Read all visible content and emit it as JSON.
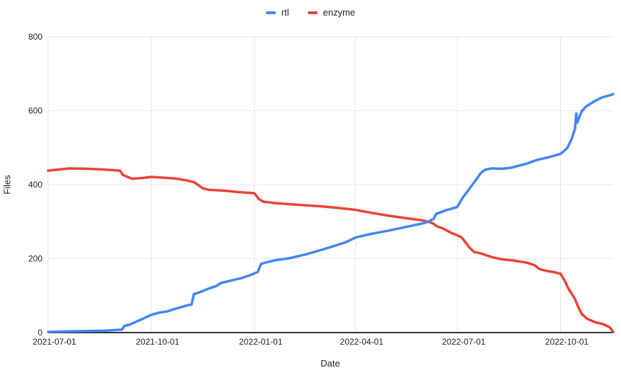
{
  "chart_data": {
    "type": "line",
    "title": "",
    "xlabel": "Date",
    "ylabel": "Files",
    "ylim": [
      0,
      800
    ],
    "x_range": [
      "2021-07-01",
      "2022-11-17"
    ],
    "x_ticks": [
      "2021-07-01",
      "2021-10-01",
      "2022-01-01",
      "2022-04-01",
      "2022-07-01",
      "2022-10-01"
    ],
    "y_ticks": [
      0,
      200,
      400,
      600,
      800
    ],
    "grid": true,
    "legend_position": "top-center",
    "colors": {
      "gridline": "#e6e6e6",
      "axis_baseline": "#333333",
      "text": "#202124",
      "background": "#ffffff"
    },
    "series": [
      {
        "name": "rtl",
        "color": "#4285F4",
        "points": [
          [
            "2021-07-01",
            2
          ],
          [
            "2021-07-15",
            3
          ],
          [
            "2021-08-01",
            4
          ],
          [
            "2021-08-20",
            5
          ],
          [
            "2021-09-01",
            7
          ],
          [
            "2021-09-05",
            8
          ],
          [
            "2021-09-07",
            18
          ],
          [
            "2021-09-12",
            22
          ],
          [
            "2021-09-18",
            30
          ],
          [
            "2021-09-24",
            38
          ],
          [
            "2021-10-01",
            48
          ],
          [
            "2021-10-08",
            54
          ],
          [
            "2021-10-15",
            57
          ],
          [
            "2021-10-22",
            64
          ],
          [
            "2021-11-01",
            73
          ],
          [
            "2021-11-06",
            76
          ],
          [
            "2021-11-08",
            104
          ],
          [
            "2021-11-14",
            110
          ],
          [
            "2021-11-22",
            120
          ],
          [
            "2021-11-28",
            126
          ],
          [
            "2021-12-02",
            134
          ],
          [
            "2021-12-10",
            140
          ],
          [
            "2021-12-20",
            147
          ],
          [
            "2021-12-28",
            155
          ],
          [
            "2022-01-04",
            164
          ],
          [
            "2022-01-07",
            186
          ],
          [
            "2022-01-12",
            190
          ],
          [
            "2022-01-20",
            196
          ],
          [
            "2022-02-01",
            201
          ],
          [
            "2022-02-15",
            211
          ],
          [
            "2022-03-01",
            223
          ],
          [
            "2022-03-15",
            236
          ],
          [
            "2022-03-24",
            245
          ],
          [
            "2022-04-01",
            257
          ],
          [
            "2022-04-08",
            262
          ],
          [
            "2022-04-15",
            267
          ],
          [
            "2022-05-01",
            276
          ],
          [
            "2022-05-15",
            285
          ],
          [
            "2022-06-01",
            296
          ],
          [
            "2022-06-05",
            300
          ],
          [
            "2022-06-10",
            308
          ],
          [
            "2022-06-12",
            321
          ],
          [
            "2022-06-20",
            330
          ],
          [
            "2022-07-01",
            340
          ],
          [
            "2022-07-06",
            366
          ],
          [
            "2022-07-12",
            390
          ],
          [
            "2022-07-18",
            415
          ],
          [
            "2022-07-22",
            432
          ],
          [
            "2022-07-26",
            441
          ],
          [
            "2022-08-01",
            444
          ],
          [
            "2022-08-10",
            443
          ],
          [
            "2022-08-18",
            446
          ],
          [
            "2022-09-01",
            457
          ],
          [
            "2022-09-10",
            467
          ],
          [
            "2022-09-20",
            474
          ],
          [
            "2022-10-01",
            483
          ],
          [
            "2022-10-07",
            499
          ],
          [
            "2022-10-11",
            524
          ],
          [
            "2022-10-14",
            552
          ],
          [
            "2022-10-15",
            593
          ],
          [
            "2022-10-16",
            568
          ],
          [
            "2022-10-18",
            584
          ],
          [
            "2022-10-20",
            599
          ],
          [
            "2022-10-24",
            612
          ],
          [
            "2022-11-01",
            627
          ],
          [
            "2022-11-07",
            636
          ],
          [
            "2022-11-12",
            640
          ],
          [
            "2022-11-17",
            645
          ]
        ]
      },
      {
        "name": "enzyme",
        "color": "#EA4335",
        "points": [
          [
            "2021-07-01",
            438
          ],
          [
            "2021-07-10",
            441
          ],
          [
            "2021-07-20",
            444
          ],
          [
            "2021-08-05",
            443
          ],
          [
            "2021-08-20",
            441
          ],
          [
            "2021-09-03",
            438
          ],
          [
            "2021-09-06",
            426
          ],
          [
            "2021-09-14",
            416
          ],
          [
            "2021-09-22",
            418
          ],
          [
            "2021-10-01",
            421
          ],
          [
            "2021-10-12",
            419
          ],
          [
            "2021-10-22",
            417
          ],
          [
            "2021-11-01",
            412
          ],
          [
            "2021-11-08",
            407
          ],
          [
            "2021-11-12",
            399
          ],
          [
            "2021-11-16",
            390
          ],
          [
            "2021-11-22",
            386
          ],
          [
            "2021-12-05",
            384
          ],
          [
            "2021-12-18",
            380
          ],
          [
            "2022-01-01",
            377
          ],
          [
            "2022-01-05",
            361
          ],
          [
            "2022-01-09",
            354
          ],
          [
            "2022-01-20",
            350
          ],
          [
            "2022-02-03",
            347
          ],
          [
            "2022-02-17",
            344
          ],
          [
            "2022-03-03",
            341
          ],
          [
            "2022-03-17",
            337
          ],
          [
            "2022-04-01",
            332
          ],
          [
            "2022-04-15",
            324
          ],
          [
            "2022-05-01",
            316
          ],
          [
            "2022-05-15",
            310
          ],
          [
            "2022-06-01",
            303
          ],
          [
            "2022-06-06",
            299
          ],
          [
            "2022-06-10",
            294
          ],
          [
            "2022-06-13",
            287
          ],
          [
            "2022-06-17",
            283
          ],
          [
            "2022-06-21",
            277
          ],
          [
            "2022-06-26",
            269
          ],
          [
            "2022-07-01",
            263
          ],
          [
            "2022-07-05",
            257
          ],
          [
            "2022-07-08",
            245
          ],
          [
            "2022-07-12",
            229
          ],
          [
            "2022-07-16",
            218
          ],
          [
            "2022-07-22",
            214
          ],
          [
            "2022-08-01",
            204
          ],
          [
            "2022-08-10",
            198
          ],
          [
            "2022-08-20",
            195
          ],
          [
            "2022-09-01",
            189
          ],
          [
            "2022-09-08",
            182
          ],
          [
            "2022-09-12",
            172
          ],
          [
            "2022-09-18",
            167
          ],
          [
            "2022-09-26",
            163
          ],
          [
            "2022-10-01",
            159
          ],
          [
            "2022-10-05",
            139
          ],
          [
            "2022-10-08",
            119
          ],
          [
            "2022-10-11",
            105
          ],
          [
            "2022-10-14",
            90
          ],
          [
            "2022-10-17",
            68
          ],
          [
            "2022-10-20",
            50
          ],
          [
            "2022-10-25",
            37
          ],
          [
            "2022-11-01",
            28
          ],
          [
            "2022-11-08",
            23
          ],
          [
            "2022-11-12",
            17
          ],
          [
            "2022-11-14",
            14
          ],
          [
            "2022-11-16",
            6
          ],
          [
            "2022-11-17",
            2
          ]
        ]
      }
    ]
  }
}
